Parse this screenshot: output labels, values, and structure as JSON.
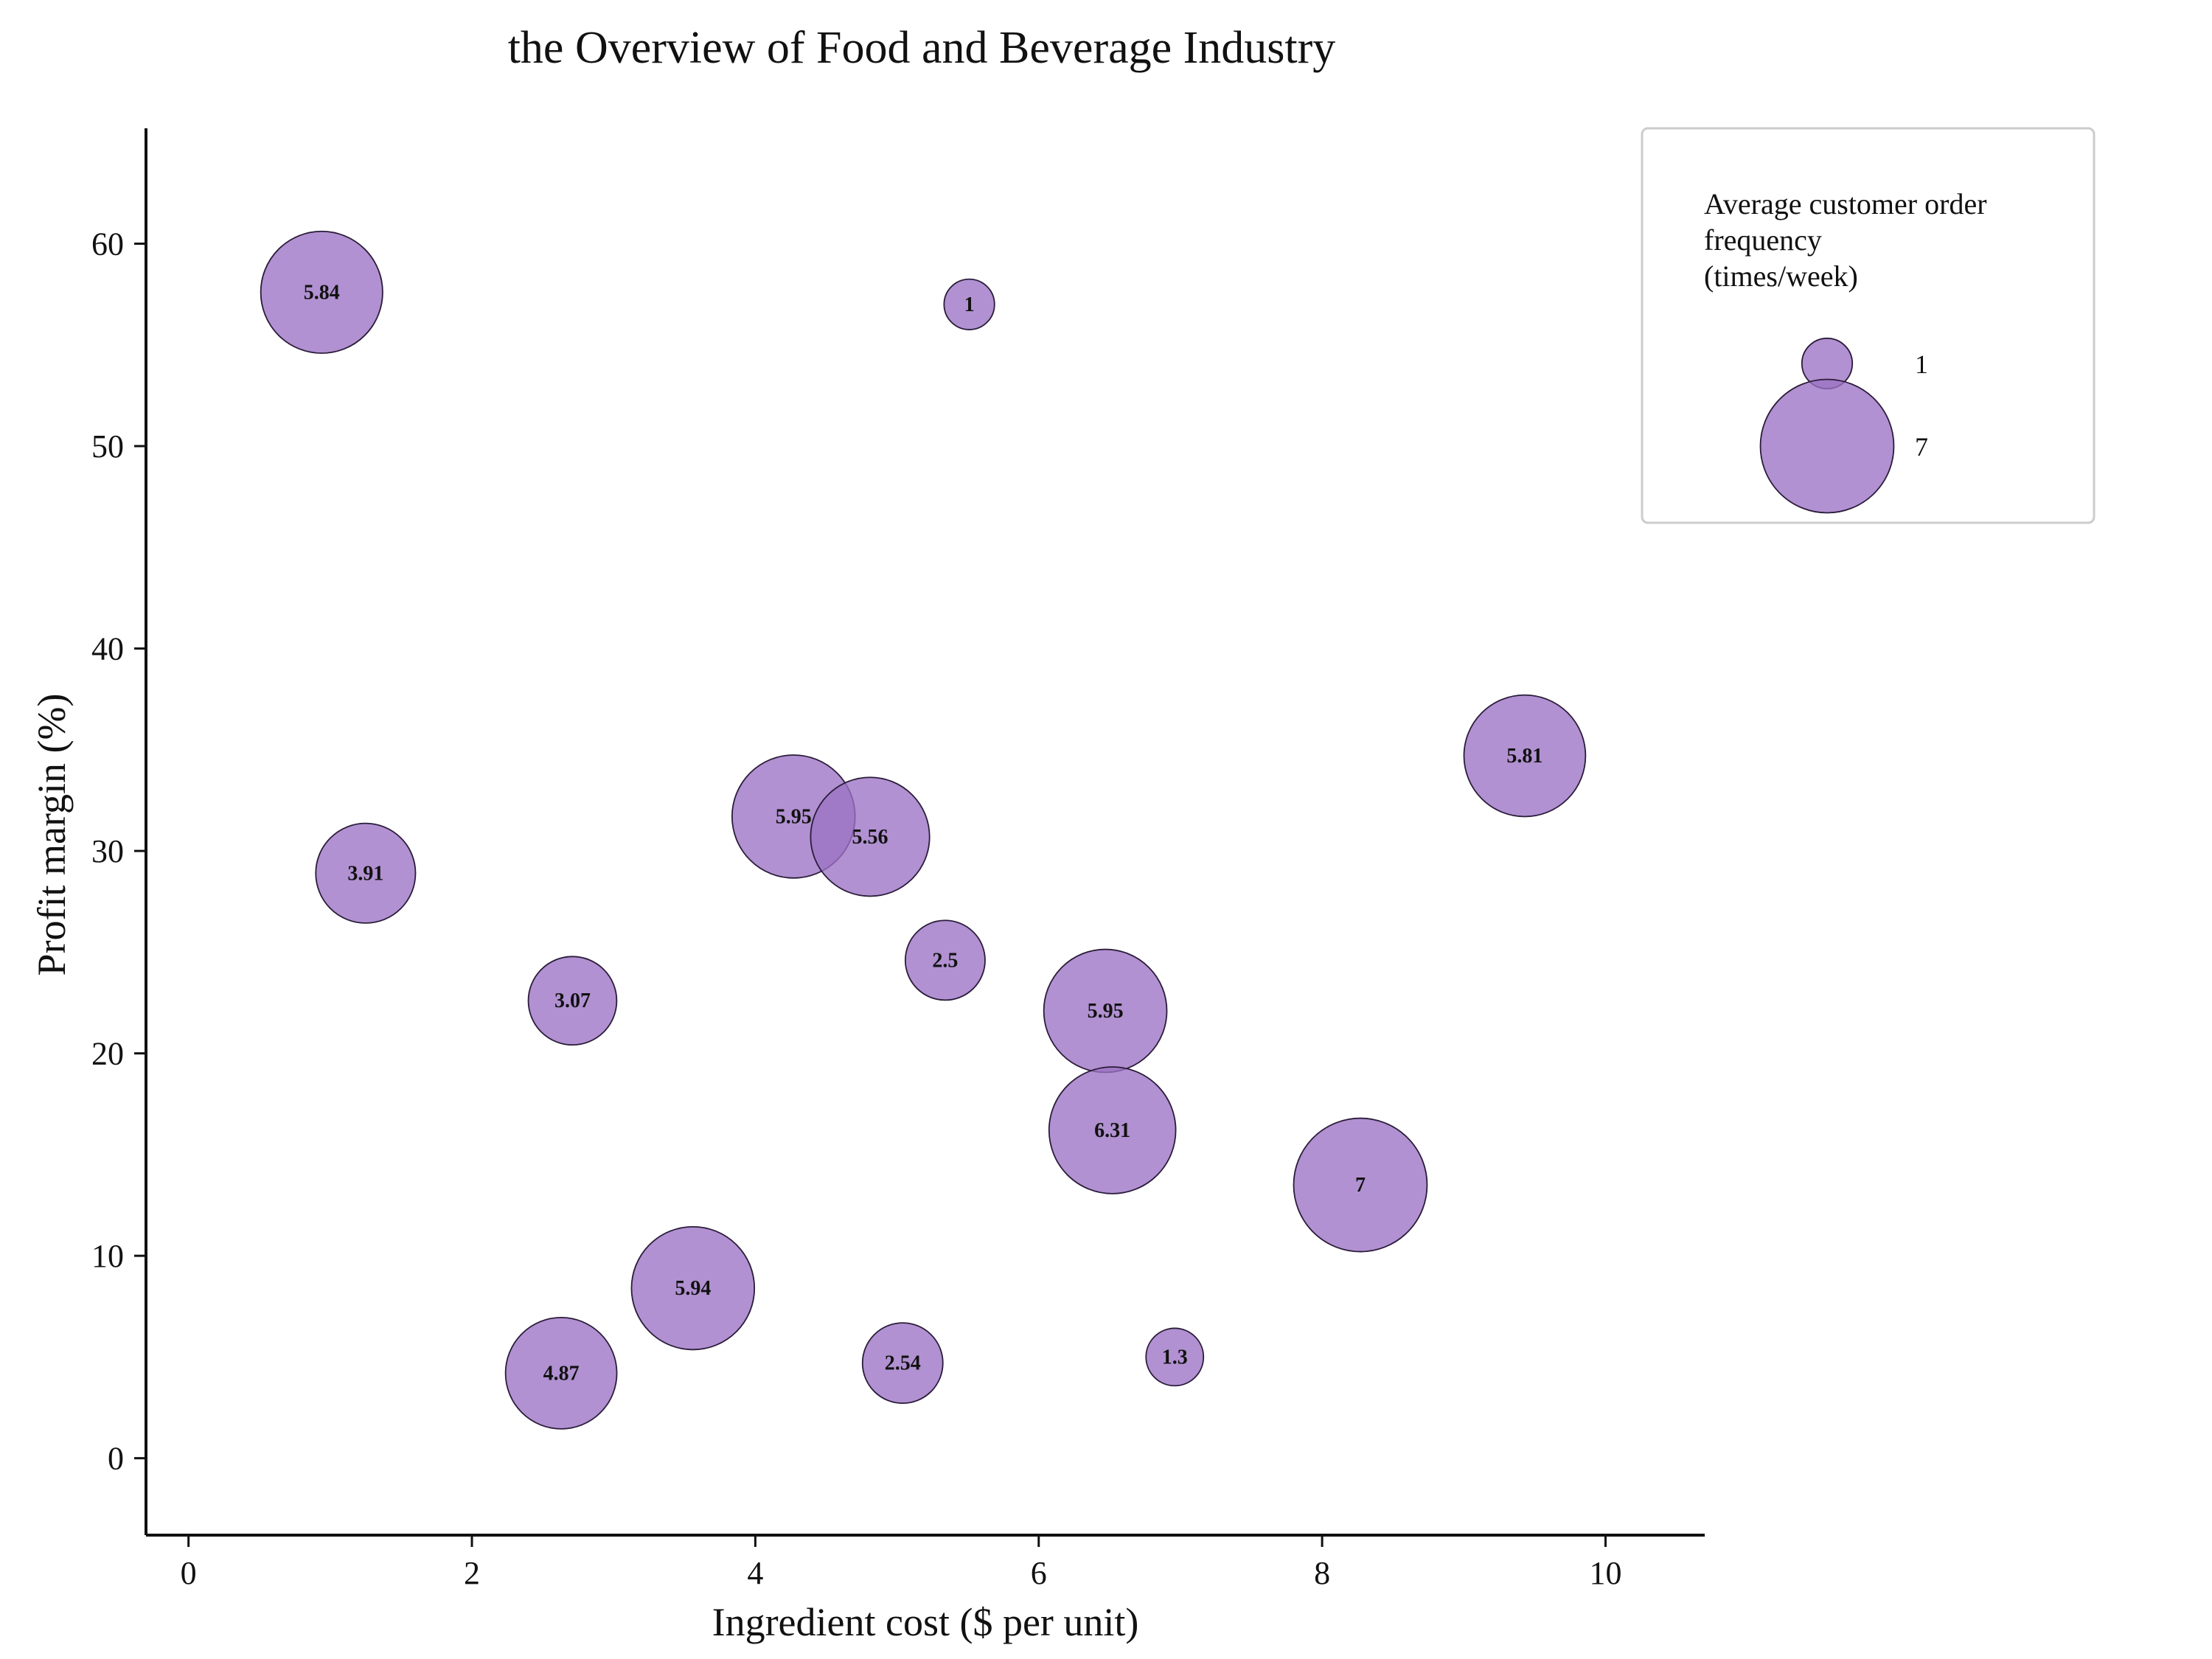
{
  "chart_data": {
    "type": "scatter",
    "title": "the Overview of Food and Beverage Industry",
    "xlabel": "Ingredient cost ($ per unit)",
    "ylabel": "Profit margin (%)",
    "xlim": [
      -0.3,
      10.7
    ],
    "ylim": [
      -3.8,
      65.7
    ],
    "x_ticks": [
      0,
      2,
      4,
      6,
      8,
      10
    ],
    "y_ticks": [
      0,
      10,
      20,
      30,
      40,
      50,
      60
    ],
    "grid": false,
    "legend_placement": "top-right",
    "bubble_color": "#9b72c4",
    "bubble_edge_color": "#2b1c3a",
    "size_legend": {
      "title_lines": [
        "Average customer order",
        "frequency",
        "(times/week)"
      ],
      "entries": [
        {
          "label": "1",
          "value": 1
        },
        {
          "label": "7",
          "value": 7
        }
      ]
    },
    "points": [
      {
        "x": 0.94,
        "y": 57.6,
        "size": 5.84,
        "label": "5.84"
      },
      {
        "x": 5.51,
        "y": 57.0,
        "size": 1.0,
        "label": "1"
      },
      {
        "x": 9.43,
        "y": 34.7,
        "size": 5.81,
        "label": "5.81"
      },
      {
        "x": 1.25,
        "y": 28.9,
        "size": 3.91,
        "label": "3.91"
      },
      {
        "x": 4.27,
        "y": 31.7,
        "size": 5.95,
        "label": "5.95"
      },
      {
        "x": 4.81,
        "y": 30.7,
        "size": 5.56,
        "label": "5.56"
      },
      {
        "x": 5.34,
        "y": 24.6,
        "size": 2.5,
        "label": "2.5"
      },
      {
        "x": 2.71,
        "y": 22.6,
        "size": 3.07,
        "label": "3.07"
      },
      {
        "x": 6.47,
        "y": 22.1,
        "size": 5.95,
        "label": "5.95"
      },
      {
        "x": 6.52,
        "y": 16.2,
        "size": 6.31,
        "label": "6.31"
      },
      {
        "x": 8.27,
        "y": 13.5,
        "size": 7.0,
        "label": "7"
      },
      {
        "x": 3.56,
        "y": 8.4,
        "size": 5.94,
        "label": "5.94"
      },
      {
        "x": 2.63,
        "y": 4.2,
        "size": 4.87,
        "label": "4.87"
      },
      {
        "x": 5.04,
        "y": 4.7,
        "size": 2.54,
        "label": "2.54"
      },
      {
        "x": 6.96,
        "y": 5.0,
        "size": 1.3,
        "label": "1.3"
      }
    ]
  }
}
